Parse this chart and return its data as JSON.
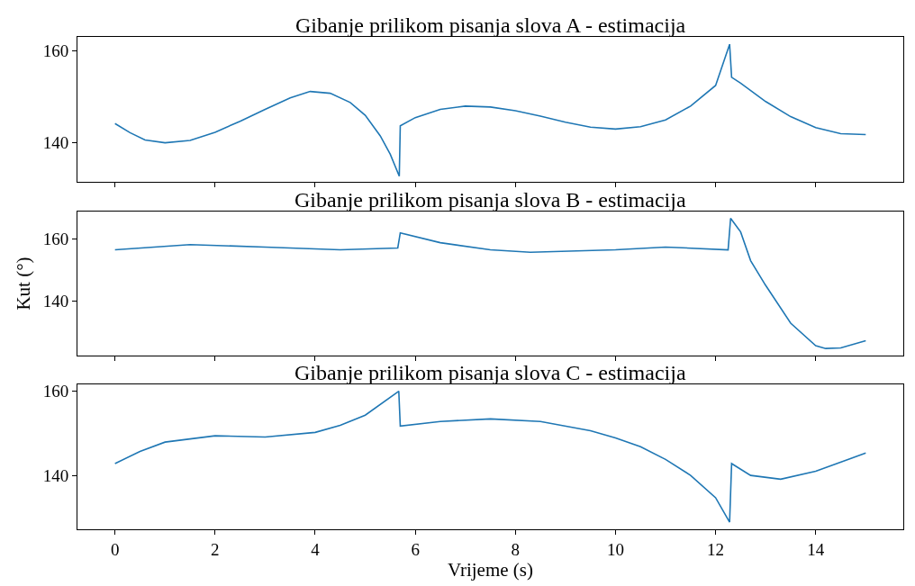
{
  "chart_data": [
    {
      "type": "line",
      "title": "Gibanje prilikom pisanja slova A - estimacija",
      "tick_labels": "y",
      "x": [
        0,
        0.3,
        0.6,
        1.0,
        1.5,
        2,
        2.5,
        3,
        3.5,
        3.9,
        4.3,
        4.7,
        5.0,
        5.3,
        5.5,
        5.68,
        5.7,
        6.0,
        6.5,
        7.0,
        7.5,
        8,
        8.5,
        9,
        9.5,
        10,
        10.5,
        11,
        11.5,
        12,
        12.28,
        12.32,
        12.5,
        13,
        13.5,
        14,
        14.5,
        15
      ],
      "series": [
        {
          "color": "#1f77b4",
          "values": [
            144.2,
            142.2,
            140.6,
            140.0,
            140.5,
            142.3,
            144.7,
            147.3,
            149.8,
            151.2,
            150.8,
            148.8,
            146.0,
            141.5,
            137.5,
            132.7,
            143.7,
            145.5,
            147.3,
            148.0,
            147.8,
            147.0,
            145.8,
            144.5,
            143.4,
            143.0,
            143.5,
            145.0,
            148.0,
            152.5,
            161.5,
            154.3,
            153.0,
            149.0,
            145.7,
            143.3,
            142.0,
            141.8
          ]
        }
      ],
      "xlim": [
        -0.75,
        15.75
      ],
      "xticks": [
        0,
        2,
        4,
        6,
        8,
        10,
        12,
        14
      ],
      "ylim": [
        131.4,
        163.1
      ],
      "yticks": [
        140,
        160
      ]
    },
    {
      "type": "line",
      "title": "Gibanje prilikom pisanja slova B - estimacija",
      "ylabel": "Kut (°)",
      "tick_labels": "y",
      "x": [
        0,
        1.5,
        3,
        4.5,
        5.65,
        5.7,
        6.5,
        7.5,
        8.3,
        10,
        11,
        12.25,
        12.3,
        12.5,
        12.7,
        13,
        13.5,
        14,
        14.2,
        14.5,
        15
      ],
      "series": [
        {
          "color": "#1f77b4",
          "values": [
            156.5,
            158.2,
            157.4,
            156.5,
            157.1,
            162.0,
            158.8,
            156.5,
            155.7,
            156.5,
            157.4,
            156.5,
            166.7,
            162.3,
            153.0,
            145.0,
            132.8,
            125.5,
            124.6,
            124.8,
            127.1
          ]
        }
      ],
      "xlim": [
        -0.75,
        15.75
      ],
      "xticks": [
        0,
        2,
        4,
        6,
        8,
        10,
        12,
        14
      ],
      "ylim": [
        122.4,
        168.8
      ],
      "yticks": [
        140,
        160
      ]
    },
    {
      "type": "line",
      "title": "Gibanje prilikom pisanja slova C - estimacija",
      "xlabel": "Vrijeme (s)",
      "x": [
        0,
        0.5,
        1,
        2,
        3,
        4,
        4.5,
        5,
        5.67,
        5.7,
        6.5,
        7.5,
        8.5,
        9.5,
        10,
        10.5,
        11,
        11.5,
        12,
        12.28,
        12.32,
        12.7,
        13.3,
        14,
        15
      ],
      "series": [
        {
          "color": "#1f77b4",
          "values": [
            142.8,
            145.7,
            147.9,
            149.4,
            149.1,
            150.2,
            151.9,
            154.3,
            160.0,
            151.7,
            152.8,
            153.4,
            152.8,
            150.6,
            148.9,
            146.8,
            143.8,
            140.0,
            134.7,
            128.9,
            142.8,
            140.0,
            139.1,
            141.0,
            145.3
          ]
        }
      ],
      "xlim": [
        -0.75,
        15.75
      ],
      "xticks": [
        0,
        2,
        4,
        6,
        8,
        10,
        12,
        14
      ],
      "ylim": [
        127.2,
        161.7
      ],
      "yticks": [
        140,
        160
      ]
    }
  ]
}
